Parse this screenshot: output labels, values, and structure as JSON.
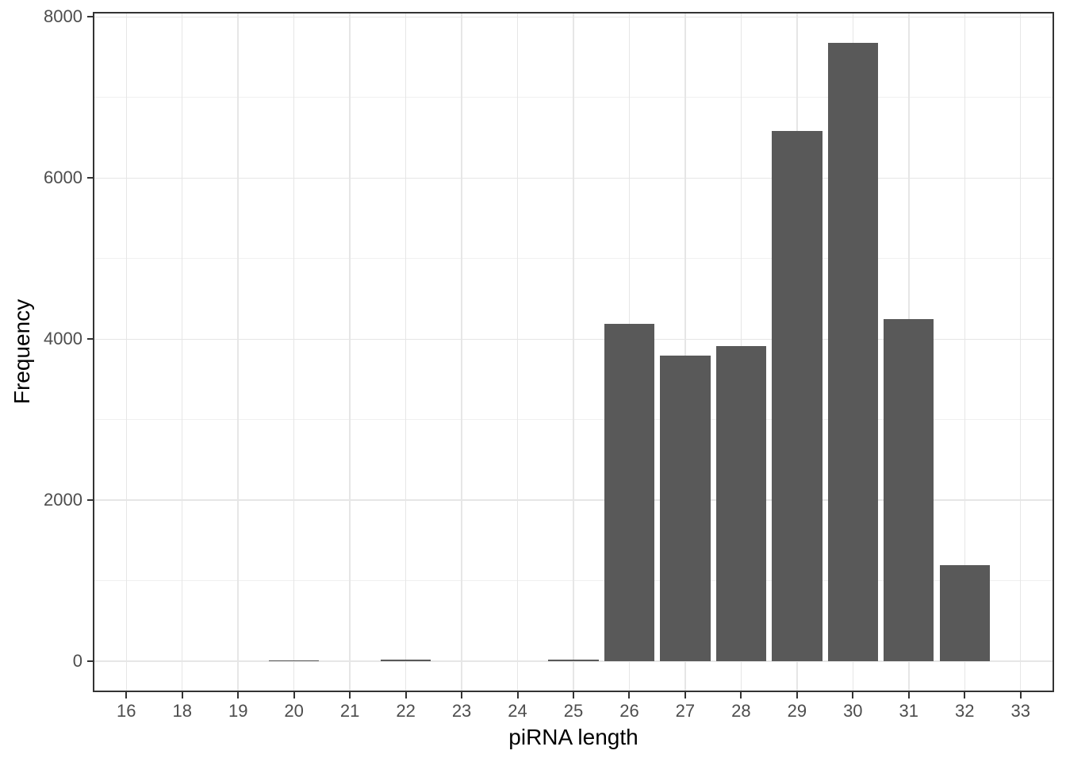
{
  "chart_data": {
    "type": "bar",
    "title": "",
    "xlabel": "piRNA length",
    "ylabel": "Frequency",
    "categories": [
      "16",
      "18",
      "19",
      "20",
      "21",
      "22",
      "23",
      "24",
      "25",
      "26",
      "27",
      "28",
      "29",
      "30",
      "31",
      "32",
      "33"
    ],
    "values": [
      0,
      0,
      0,
      15,
      0,
      20,
      0,
      0,
      20,
      4190,
      3800,
      3910,
      6590,
      7680,
      4250,
      1190,
      0
    ],
    "y_ticks": [
      0,
      2000,
      4000,
      6000,
      8000
    ],
    "y_minor_ticks": [
      1000,
      3000,
      5000,
      7000
    ],
    "ylim_data": [
      0,
      7680
    ],
    "axis_expansion_mult": 0.05,
    "bar_relative_width": 0.9,
    "category_edge_padding": 0.6,
    "grid": "on",
    "legend_position": "none"
  },
  "colors": {
    "background": "#ffffff",
    "bar_fill": "#595959",
    "panel_border": "#333333",
    "grid_major": "#e6e6e6",
    "grid_minor": "#f0f0f0",
    "tick_mark": "#333333",
    "tick_label": "#4d4d4d",
    "axis_title": "#000000"
  }
}
